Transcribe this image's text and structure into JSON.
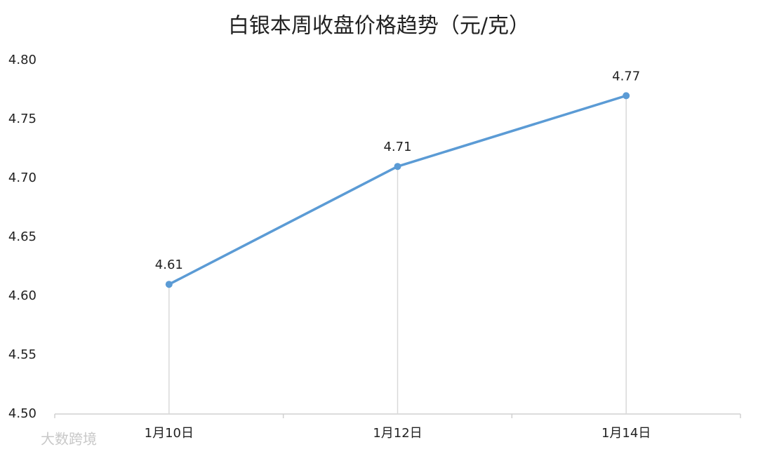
{
  "chart_data": {
    "type": "line",
    "title": "白银本周收盘价格趋势（元/克）",
    "categories": [
      "1月10日",
      "1月12日",
      "1月14日"
    ],
    "values": [
      4.61,
      4.71,
      4.77
    ],
    "color": "#5b9bd5",
    "ylim": [
      4.5,
      4.8
    ],
    "yticks": [
      {
        "value": 4.5,
        "label": "4.50"
      },
      {
        "value": 4.55,
        "label": "4.55"
      },
      {
        "value": 4.6,
        "label": "4.60"
      },
      {
        "value": 4.65,
        "label": "4.65"
      },
      {
        "value": 4.7,
        "label": "4.70"
      },
      {
        "value": 4.75,
        "label": "4.75"
      },
      {
        "value": 4.8,
        "label": "4.80"
      }
    ],
    "drop_lines": true,
    "watermark": "大数跨境"
  }
}
